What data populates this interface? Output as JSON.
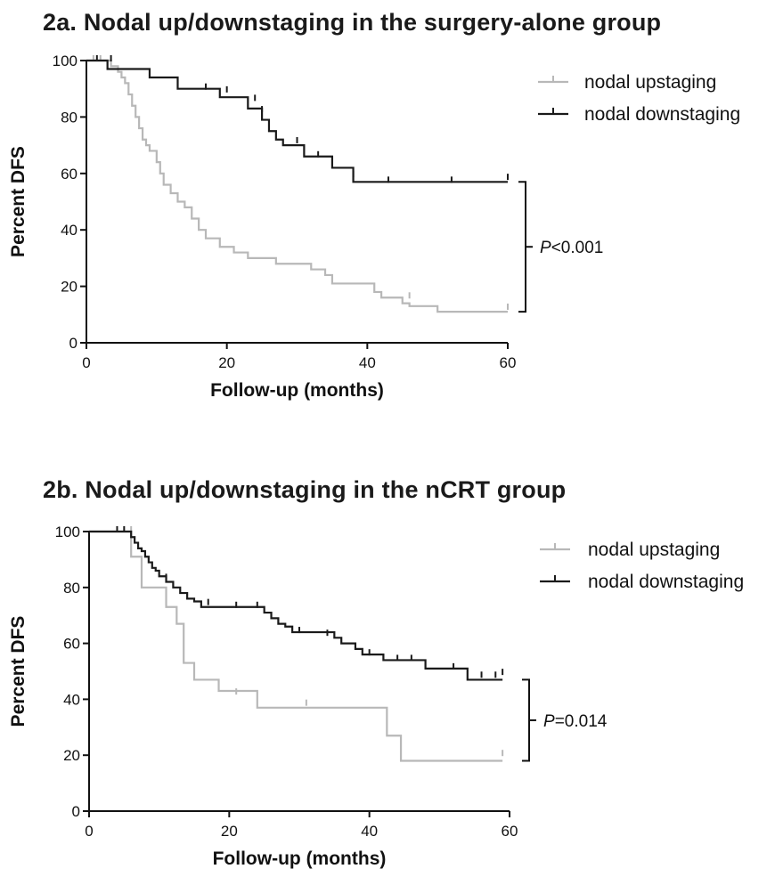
{
  "chart_data": [
    {
      "type": "line",
      "subtype": "kaplan-meier",
      "title": "2a. Nodal up/downstaging in the surgery-alone group",
      "xlabel": "Follow-up (months)",
      "ylabel": "Percent DFS",
      "xlim": [
        0,
        60
      ],
      "ylim": [
        0,
        100
      ],
      "xticks": [
        0,
        20,
        40,
        60
      ],
      "yticks": [
        0,
        20,
        40,
        60,
        80,
        100
      ],
      "grid": false,
      "legend_position": "top-right",
      "annotation": {
        "prefix": "P",
        "text": "<0.001"
      },
      "series": [
        {
          "name": "nodal upstaging",
          "color": "#b8b8b8",
          "steps": [
            [
              0,
              100
            ],
            [
              3.5,
              98
            ],
            [
              4.5,
              96
            ],
            [
              5,
              94
            ],
            [
              5.5,
              92
            ],
            [
              6,
              88
            ],
            [
              6.5,
              84
            ],
            [
              7,
              80
            ],
            [
              7.5,
              76
            ],
            [
              8,
              72
            ],
            [
              8.5,
              70
            ],
            [
              9,
              68
            ],
            [
              10,
              64
            ],
            [
              10.5,
              60
            ],
            [
              11,
              56
            ],
            [
              12,
              53
            ],
            [
              13,
              50
            ],
            [
              14,
              48
            ],
            [
              15,
              44
            ],
            [
              16,
              40
            ],
            [
              17,
              37
            ],
            [
              19,
              34
            ],
            [
              21,
              32
            ],
            [
              23,
              30
            ],
            [
              27,
              28
            ],
            [
              32,
              26
            ],
            [
              34,
              24
            ],
            [
              35,
              21
            ],
            [
              41,
              18
            ],
            [
              42,
              16
            ],
            [
              45,
              14
            ],
            [
              46,
              13
            ],
            [
              50,
              11
            ],
            [
              60,
              11
            ]
          ],
          "censored": [
            [
              1,
              100
            ],
            [
              2,
              100
            ],
            [
              46,
              16
            ],
            [
              60,
              12
            ]
          ]
        },
        {
          "name": "nodal downstaging",
          "color": "#1a1a1a",
          "steps": [
            [
              0,
              100
            ],
            [
              3,
              97
            ],
            [
              9,
              94
            ],
            [
              13,
              90
            ],
            [
              19,
              87
            ],
            [
              23,
              83
            ],
            [
              25,
              79
            ],
            [
              26,
              75
            ],
            [
              27,
              72
            ],
            [
              28,
              70
            ],
            [
              31,
              66
            ],
            [
              35,
              62
            ],
            [
              38,
              57
            ],
            [
              60,
              57
            ]
          ],
          "censored": [
            [
              1.5,
              100
            ],
            [
              3.5,
              100
            ],
            [
              17,
              90
            ],
            [
              20,
              89
            ],
            [
              24,
              86
            ],
            [
              25,
              82
            ],
            [
              30,
              71
            ],
            [
              33,
              66
            ],
            [
              38,
              59
            ],
            [
              43,
              57
            ],
            [
              52,
              57
            ],
            [
              60,
              58
            ]
          ]
        }
      ]
    },
    {
      "type": "line",
      "subtype": "kaplan-meier",
      "title": "2b. Nodal up/downstaging in the nCRT group",
      "xlabel": "Follow-up (months)",
      "ylabel": "Percent DFS",
      "xlim": [
        0,
        60
      ],
      "ylim": [
        0,
        100
      ],
      "xticks": [
        0,
        20,
        40,
        60
      ],
      "yticks": [
        0,
        20,
        40,
        60,
        80,
        100
      ],
      "grid": false,
      "legend_position": "top-right",
      "annotation": {
        "prefix": "P",
        "text": "=0.014"
      },
      "series": [
        {
          "name": "nodal upstaging",
          "color": "#b8b8b8",
          "steps": [
            [
              0,
              100
            ],
            [
              6,
              91
            ],
            [
              7.5,
              80
            ],
            [
              11,
              73
            ],
            [
              12.5,
              67
            ],
            [
              13.5,
              53
            ],
            [
              15,
              47
            ],
            [
              18.5,
              43
            ],
            [
              24,
              37
            ],
            [
              42.5,
              27
            ],
            [
              44.5,
              18
            ],
            [
              59,
              18
            ]
          ],
          "censored": [
            [
              6,
              100
            ],
            [
              21,
              42
            ],
            [
              31,
              38
            ],
            [
              59,
              20
            ]
          ]
        },
        {
          "name": "nodal downstaging",
          "color": "#1a1a1a",
          "steps": [
            [
              0,
              100
            ],
            [
              6,
              98
            ],
            [
              6.5,
              96
            ],
            [
              7,
              94
            ],
            [
              7.5,
              93
            ],
            [
              8,
              91
            ],
            [
              8.5,
              89
            ],
            [
              9,
              87
            ],
            [
              9.5,
              86
            ],
            [
              10,
              84
            ],
            [
              11,
              82
            ],
            [
              12,
              80
            ],
            [
              13,
              78
            ],
            [
              14,
              76
            ],
            [
              15,
              75
            ],
            [
              16,
              73
            ],
            [
              25,
              71
            ],
            [
              26,
              69
            ],
            [
              27,
              67
            ],
            [
              28,
              66
            ],
            [
              29,
              64
            ],
            [
              35,
              62
            ],
            [
              36,
              60
            ],
            [
              38,
              58
            ],
            [
              39,
              56
            ],
            [
              42,
              54
            ],
            [
              48,
              51
            ],
            [
              54,
              47
            ],
            [
              59,
              47
            ]
          ],
          "censored": [
            [
              4,
              100
            ],
            [
              5,
              100
            ],
            [
              11,
              83
            ],
            [
              17,
              74
            ],
            [
              21,
              73
            ],
            [
              24,
              73
            ],
            [
              30,
              64
            ],
            [
              34,
              63
            ],
            [
              40,
              56
            ],
            [
              44,
              54
            ],
            [
              46,
              54
            ],
            [
              52,
              51
            ],
            [
              56,
              48
            ],
            [
              58,
              48
            ],
            [
              59,
              49
            ]
          ]
        }
      ]
    }
  ]
}
